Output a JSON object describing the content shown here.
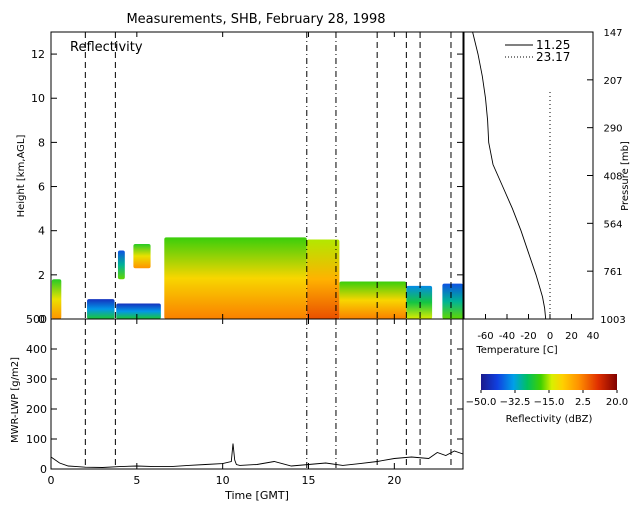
{
  "title": "Measurements, SHB, February 28, 1998",
  "chart_data": [
    {
      "type": "heatmap",
      "panel": "reflectivity",
      "label": "Reflectivity",
      "xlabel": "",
      "ylabel": "Height [km,AGL]",
      "xlim": [
        0,
        24
      ],
      "ylim": [
        0,
        13
      ],
      "yticks": [
        "0",
        "2",
        "4",
        "6",
        "8",
        "10",
        "12"
      ],
      "vlines_dashed": [
        2.0,
        3.75,
        19.0,
        20.7,
        21.5,
        23.3
      ],
      "vlines_dashdot": [
        14.9,
        16.6
      ],
      "regions": [
        {
          "t0": 0.05,
          "t1": 0.6,
          "h0": 0.0,
          "h1": 1.8,
          "dbz": -12
        },
        {
          "t0": 2.1,
          "t1": 3.7,
          "h0": 0.0,
          "h1": 0.9,
          "dbz": -35
        },
        {
          "t0": 3.8,
          "t1": 6.4,
          "h0": 0.0,
          "h1": 0.7,
          "dbz": -35
        },
        {
          "t0": 3.9,
          "t1": 4.3,
          "h0": 1.8,
          "h1": 3.1,
          "dbz": -30
        },
        {
          "t0": 4.8,
          "t1": 5.8,
          "h0": 2.3,
          "h1": 3.4,
          "dbz": -12
        },
        {
          "t0": 6.6,
          "t1": 14.9,
          "h0": 0.0,
          "h1": 3.7,
          "dbz": -10
        },
        {
          "t0": 14.9,
          "t1": 16.8,
          "h0": 0.0,
          "h1": 3.6,
          "dbz": -5
        },
        {
          "t0": 16.8,
          "t1": 20.7,
          "h0": 0.0,
          "h1": 1.7,
          "dbz": -10
        },
        {
          "t0": 20.7,
          "t1": 22.2,
          "h0": 0.0,
          "h1": 1.5,
          "dbz": -25
        },
        {
          "t0": 22.8,
          "t1": 24.0,
          "h0": 0.0,
          "h1": 1.6,
          "dbz": -30
        }
      ]
    },
    {
      "type": "line",
      "panel": "lwp",
      "xlabel": "Time [GMT]",
      "ylabel": "MWR-LWP [g/m2]",
      "xlim": [
        0,
        24
      ],
      "ylim": [
        0,
        500
      ],
      "xticks": [
        "0",
        "5",
        "10",
        "15",
        "20"
      ],
      "yticks": [
        "0",
        "100",
        "200",
        "300",
        "400",
        "500"
      ],
      "x": [
        0,
        0.5,
        1,
        1.5,
        2,
        3,
        4,
        5,
        6,
        7,
        8,
        9,
        10,
        10.5,
        10.6,
        10.7,
        10.8,
        11,
        12,
        13,
        14,
        15,
        16,
        17,
        18,
        19,
        20,
        21,
        22,
        22.5,
        23,
        23.5,
        24
      ],
      "y": [
        40,
        20,
        10,
        8,
        6,
        5,
        8,
        10,
        8,
        8,
        12,
        15,
        18,
        25,
        85,
        30,
        15,
        12,
        15,
        25,
        10,
        15,
        20,
        12,
        18,
        25,
        35,
        40,
        35,
        55,
        45,
        60,
        50
      ]
    },
    {
      "type": "line",
      "panel": "temperature-profile",
      "xlabel": "Temperature [C]",
      "ylabel": "Pressure [mb]",
      "xlim": [
        -80,
        40
      ],
      "xticks": [
        "-60",
        "-40",
        "-20",
        "0",
        "20",
        "40"
      ],
      "pressure_ticks": [
        "147",
        "207",
        "290",
        "408",
        "564",
        "761",
        "1003"
      ],
      "series": [
        {
          "name": "11.25",
          "style": "solid",
          "h": [
            0,
            0.5,
            1.0,
            1.5,
            2.0,
            3.0,
            4.0,
            5.0,
            6.0,
            7.0,
            8.0,
            9.0,
            10.0,
            11.0,
            12.0,
            13.0
          ],
          "t": [
            -4,
            -5,
            -7,
            -10,
            -13,
            -20,
            -27,
            -35,
            -44,
            -53,
            -57,
            -58,
            -60,
            -63,
            -67,
            -72
          ]
        },
        {
          "name": "23.17",
          "style": "dotted",
          "t_const": 0
        }
      ]
    },
    {
      "type": "colorbar",
      "label": "Reflectivity (dBZ)",
      "range": [
        -50,
        20
      ],
      "tick_values": [
        -50,
        -32.5,
        -15,
        2.5,
        20
      ],
      "tick_labels": [
        "−50.0",
        "−32.5",
        "−15.0",
        "2.5",
        "20.0"
      ]
    }
  ]
}
